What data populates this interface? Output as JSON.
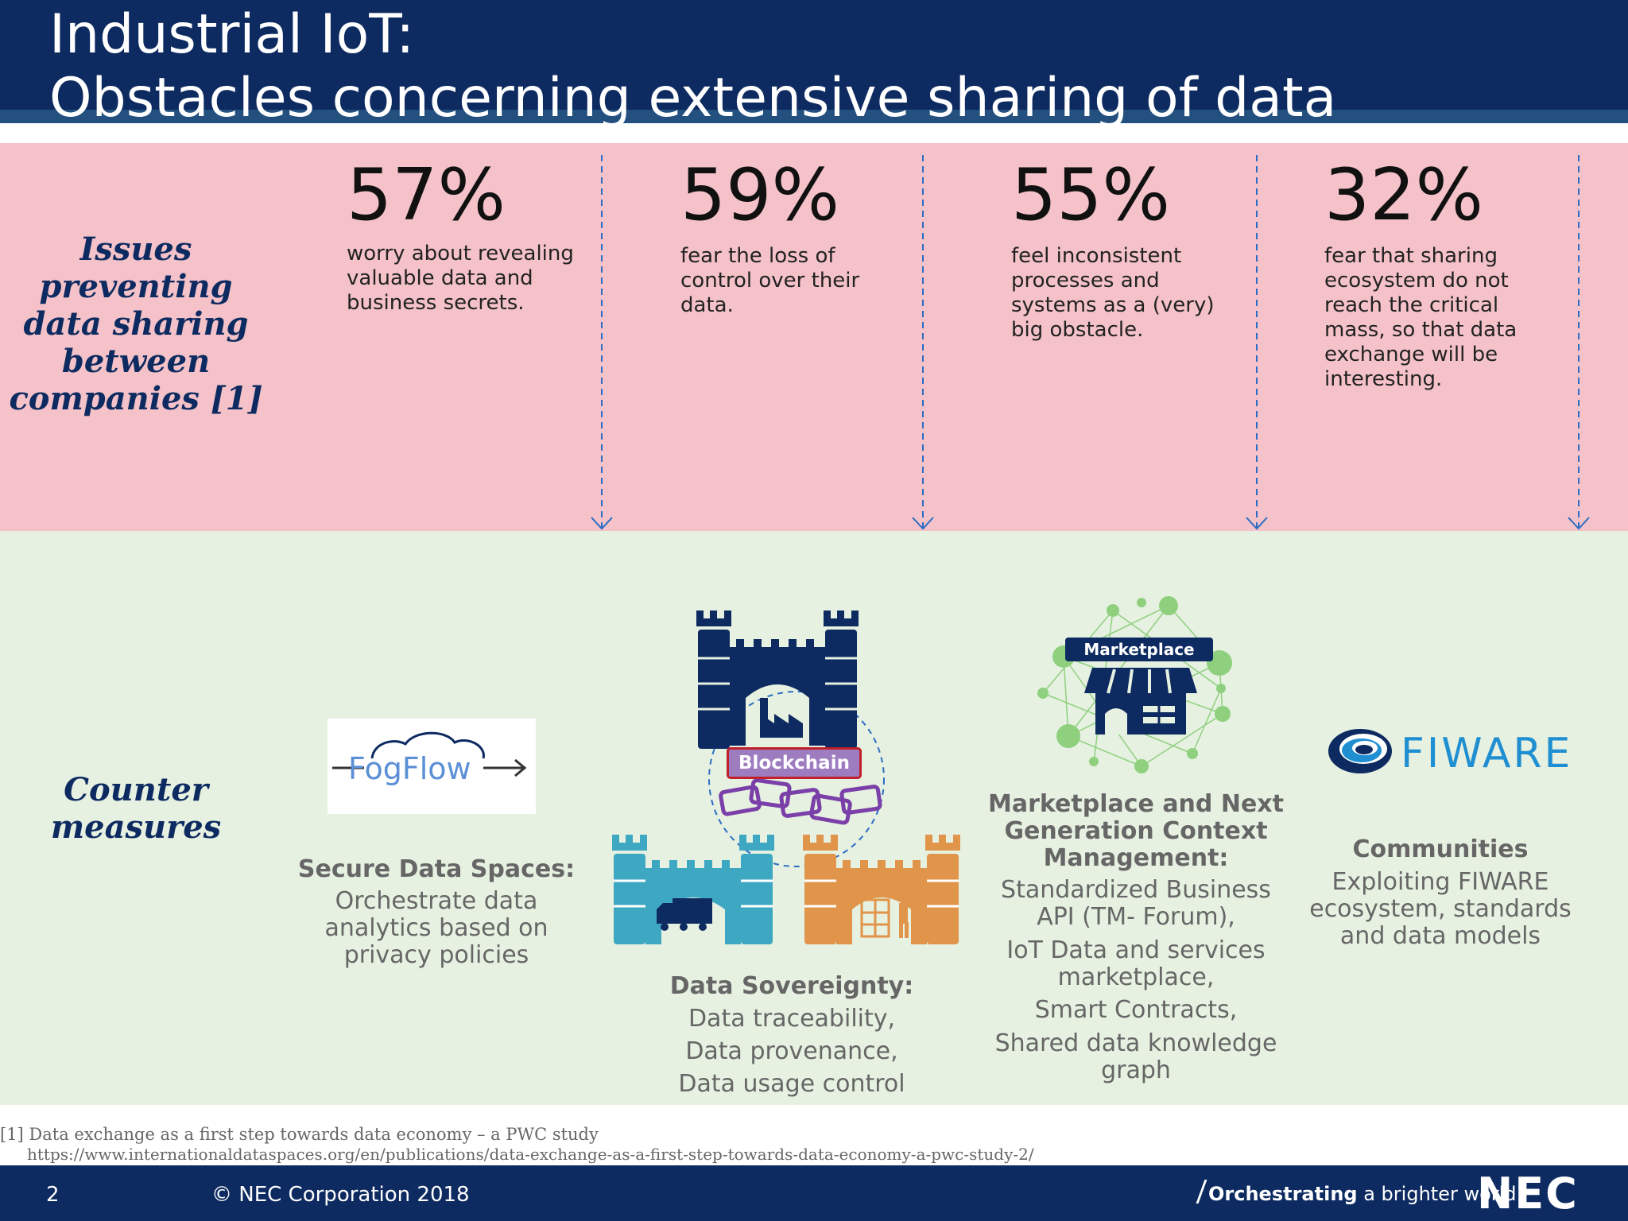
{
  "header": {
    "title_line1": "Industrial IoT:",
    "title_line2": "Obstacles concerning extensive sharing of data"
  },
  "issues": {
    "label": "Issues preventing data sharing between companies [1]",
    "stats": [
      {
        "value": "57%",
        "text": "worry about revealing valuable data and business secrets."
      },
      {
        "value": "59%",
        "text": "fear the loss of control over their data."
      },
      {
        "value": "55%",
        "text": "feel inconsistent processes and systems as a (very) big obstacle."
      },
      {
        "value": "32%",
        "text": "fear that sharing ecosystem do not reach the critical mass, so that data exchange will be interesting."
      }
    ]
  },
  "countermeasures": {
    "label": "Counter measures",
    "items": [
      {
        "logo_text": "FogFlow",
        "title": "Secure Data Spaces:",
        "lines": [
          "Orchestrate data",
          "analytics based on",
          "privacy policies"
        ]
      },
      {
        "logo_text": "Blockchain",
        "title": "Data Sovereignty:",
        "lines": [
          "Data traceability,",
          "Data provenance,",
          "Data usage control"
        ]
      },
      {
        "logo_text": "Marketplace",
        "title_lines": [
          "Marketplace and Next",
          "Generation Context",
          "Management:"
        ],
        "lines": [
          "Standardized Business",
          "API (TM- Forum),",
          "IoT Data and services",
          "marketplace,",
          "Smart Contracts,",
          "Shared data knowledge",
          "graph"
        ]
      },
      {
        "logo_text": "FIWARE",
        "title": "Communities",
        "lines": [
          "Exploiting FIWARE",
          "ecosystem, standards",
          "and data models"
        ]
      }
    ]
  },
  "footnote": {
    "reference": "[1] Data exchange as a first step towards data economy – a PWC study",
    "url": "https://www.internationaldataspaces.org/en/publications/data-exchange-as-a-first-step-towards-data-economy-a-pwc-study-2/"
  },
  "footer": {
    "page_number": "2",
    "copyright": "© NEC Corporation 2018",
    "tagline_strong": "Orchestrating",
    "tagline_rest": " a brighter world",
    "logo": "NEC"
  },
  "colors": {
    "navy": "#0e2b61",
    "pink_band": "#f4c2c8",
    "green_band": "#e6f1e1",
    "divider_blue": "#2b6cc4",
    "castle_navy": "#0e2b61",
    "castle_teal": "#3ea8c2",
    "castle_orange": "#e0954a",
    "chain_purple": "#7a3fa8",
    "network_green": "#7fcf70"
  },
  "icons": [
    "fogflow-logo",
    "castle-icon",
    "factory-icon",
    "truck-icon",
    "warehouse-worker-icon",
    "chain-icon",
    "store-icon",
    "network-icon",
    "fiware-logo",
    "nec-logo"
  ]
}
